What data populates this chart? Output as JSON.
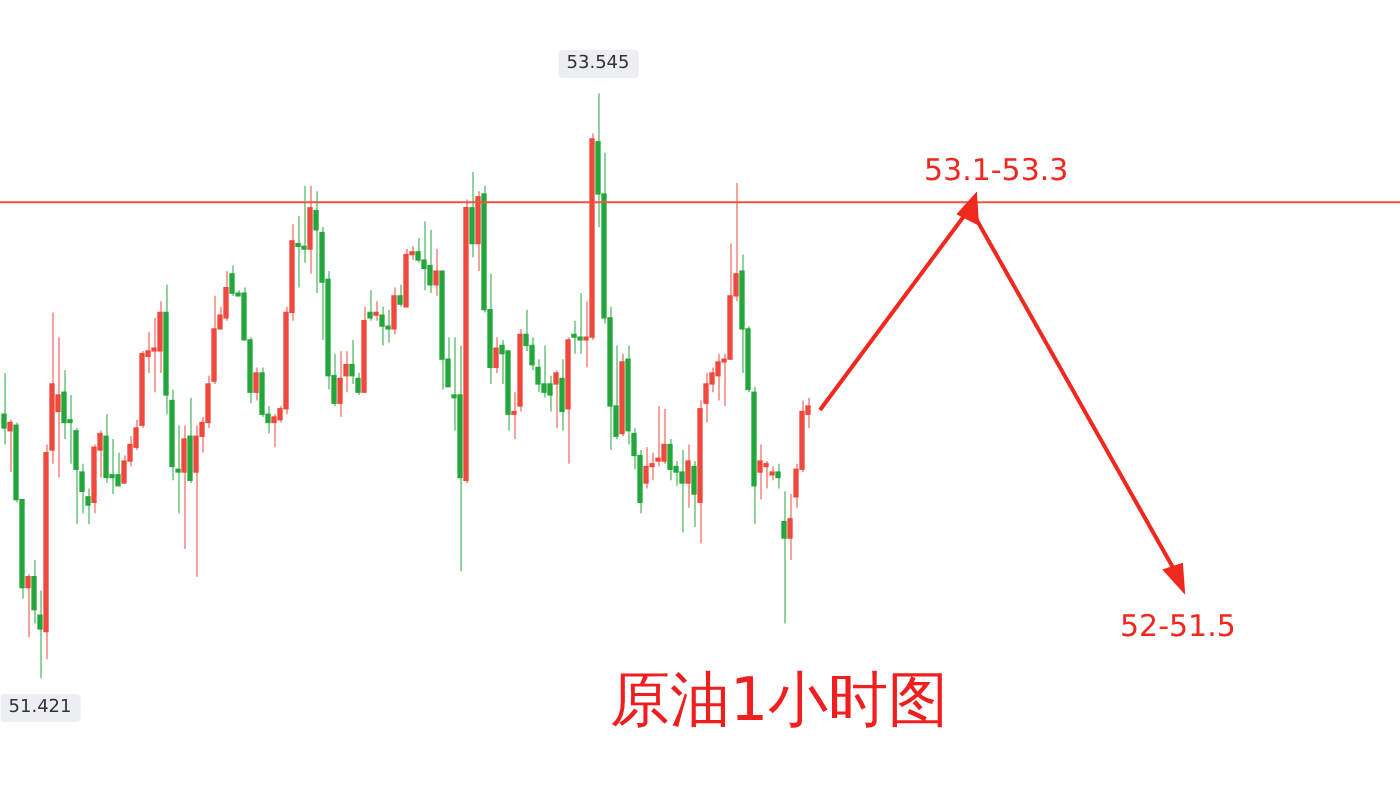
{
  "chart_data": {
    "type": "candlestick",
    "title": "原油1小时图",
    "categories": [
      null,
      null,
      null,
      null,
      null,
      null,
      null,
      null,
      null,
      null,
      null,
      null,
      null,
      null,
      null,
      null,
      null,
      null,
      null,
      null,
      null,
      null,
      null,
      null,
      null,
      null,
      null,
      null,
      null,
      null,
      null,
      null,
      null,
      null,
      null,
      null,
      null,
      null,
      null,
      null,
      null,
      null,
      null,
      null,
      null,
      null,
      null,
      null,
      null,
      null,
      null,
      null,
      null,
      null,
      null,
      null,
      null,
      null,
      null,
      null,
      null,
      null,
      null,
      null,
      null,
      null,
      null,
      null,
      null,
      null,
      null,
      null,
      null,
      null,
      null,
      null,
      null,
      null,
      null,
      null,
      null,
      null,
      null,
      null,
      null,
      null,
      null,
      null,
      null,
      null,
      null,
      null,
      null,
      null,
      null,
      null,
      null,
      null,
      null,
      null,
      null,
      null,
      null,
      null,
      null,
      null,
      null,
      null,
      null,
      null,
      null,
      null,
      null,
      null,
      null,
      null,
      null,
      null,
      null,
      null,
      null,
      null,
      null,
      null,
      null,
      null,
      null,
      null,
      null,
      null,
      null,
      null,
      null,
      null,
      null
    ],
    "ohlc": [
      [
        52.38,
        52.53,
        52.27,
        52.33
      ],
      [
        52.32,
        52.36,
        52.17,
        52.35
      ],
      [
        52.34,
        52.35,
        52.06,
        52.07
      ],
      [
        52.07,
        52.07,
        51.71,
        51.75
      ],
      [
        51.75,
        51.8,
        51.57,
        51.79
      ],
      [
        51.79,
        51.85,
        51.62,
        51.67
      ],
      [
        51.65,
        51.74,
        51.421,
        51.6
      ],
      [
        51.59,
        52.27,
        51.49,
        52.24
      ],
      [
        52.25,
        52.75,
        52.2,
        52.49
      ],
      [
        52.39,
        52.66,
        52.15,
        52.45
      ],
      [
        52.46,
        52.54,
        52.29,
        52.35
      ],
      [
        52.36,
        52.45,
        52.2,
        52.35
      ],
      [
        52.32,
        52.33,
        51.98,
        52.18
      ],
      [
        52.17,
        52.2,
        52.02,
        52.1
      ],
      [
        52.08,
        52.11,
        51.98,
        52.05
      ],
      [
        52.06,
        52.27,
        52.02,
        52.26
      ],
      [
        52.25,
        52.32,
        52.15,
        52.31
      ],
      [
        52.3,
        52.38,
        52.13,
        52.15
      ],
      [
        52.16,
        52.29,
        52.09,
        52.15
      ],
      [
        52.16,
        52.24,
        52.12,
        52.12
      ],
      [
        52.13,
        52.23,
        52.13,
        52.21
      ],
      [
        52.21,
        52.3,
        52.19,
        52.27
      ],
      [
        52.26,
        52.36,
        52.25,
        52.33
      ],
      [
        52.34,
        52.61,
        52.33,
        52.6
      ],
      [
        52.59,
        52.68,
        52.53,
        52.61
      ],
      [
        52.61,
        52.73,
        52.46,
        52.62
      ],
      [
        52.61,
        52.79,
        52.53,
        52.75
      ],
      [
        52.75,
        52.85,
        52.38,
        52.45
      ],
      [
        52.43,
        52.47,
        52.14,
        52.19
      ],
      [
        52.18,
        52.34,
        52.02,
        52.17
      ],
      [
        52.17,
        52.34,
        51.89,
        52.29
      ],
      [
        52.3,
        52.44,
        52.13,
        52.14
      ],
      [
        52.17,
        52.34,
        51.79,
        52.3
      ],
      [
        52.3,
        52.37,
        52.24,
        52.35
      ],
      [
        52.35,
        52.52,
        52.33,
        52.49
      ],
      [
        52.5,
        52.81,
        52.49,
        52.69
      ],
      [
        52.69,
        52.77,
        52.69,
        52.74
      ],
      [
        52.73,
        52.9,
        52.72,
        52.84
      ],
      [
        52.89,
        52.92,
        52.81,
        52.82
      ],
      [
        52.82,
        52.83,
        52.81,
        52.81
      ],
      [
        52.82,
        52.84,
        52.65,
        52.65
      ],
      [
        52.65,
        52.66,
        52.42,
        52.46
      ],
      [
        52.46,
        52.55,
        52.43,
        52.53
      ],
      [
        52.53,
        52.55,
        52.37,
        52.38
      ],
      [
        52.38,
        52.41,
        52.31,
        52.35
      ],
      [
        52.35,
        52.38,
        52.26,
        52.37
      ],
      [
        52.36,
        52.41,
        52.35,
        52.4
      ],
      [
        52.4,
        52.77,
        52.38,
        52.75
      ],
      [
        52.75,
        53.07,
        52.72,
        53.01
      ],
      [
        53,
        53.1,
        52.84,
        52.99
      ],
      [
        52.99,
        53.21,
        52.93,
        52.98
      ],
      [
        52.98,
        53.21,
        52.89,
        53.13
      ],
      [
        53.12,
        53.19,
        52.82,
        53.05
      ],
      [
        53.04,
        53.06,
        52.65,
        52.86
      ],
      [
        52.87,
        52.9,
        52.47,
        52.52
      ],
      [
        52.52,
        52.6,
        52.41,
        52.42
      ],
      [
        52.42,
        52.61,
        52.37,
        52.51
      ],
      [
        52.52,
        52.61,
        52.46,
        52.56
      ],
      [
        52.56,
        52.65,
        52.49,
        52.52
      ],
      [
        52.51,
        52.53,
        52.45,
        52.46
      ],
      [
        52.46,
        52.77,
        52.46,
        52.72
      ],
      [
        52.75,
        52.83,
        52.72,
        52.73
      ],
      [
        52.74,
        52.79,
        52.72,
        52.75
      ],
      [
        52.74,
        52.77,
        52.63,
        52.7
      ],
      [
        52.7,
        52.76,
        52.64,
        52.69
      ],
      [
        52.69,
        52.84,
        52.67,
        52.81
      ],
      [
        52.81,
        52.85,
        52.77,
        52.78
      ],
      [
        52.77,
        52.98,
        52.77,
        52.96
      ],
      [
        52.96,
        52.99,
        52.94,
        52.97
      ],
      [
        52.97,
        53.02,
        52.93,
        52.94
      ],
      [
        52.94,
        53.08,
        52.83,
        52.91
      ],
      [
        52.92,
        53.05,
        52.82,
        52.85
      ],
      [
        52.85,
        52.98,
        52.81,
        52.9
      ],
      [
        52.9,
        52.9,
        52.47,
        52.58
      ],
      [
        52.58,
        52.66,
        52.48,
        52.48
      ],
      [
        52.45,
        52.66,
        52.32,
        52.44
      ],
      [
        52.45,
        52.63,
        51.81,
        52.15
      ],
      [
        52.14,
        53.16,
        52.13,
        53.13
      ],
      [
        53.13,
        53.26,
        52.95,
        53
      ],
      [
        53,
        53.19,
        52.9,
        53.17
      ],
      [
        53.18,
        53.21,
        52.75,
        52.76
      ],
      [
        52.76,
        52.89,
        52.49,
        52.55
      ],
      [
        52.55,
        52.66,
        52.53,
        52.62
      ],
      [
        52.63,
        52.65,
        52.49,
        52.6
      ],
      [
        52.61,
        52.61,
        52.32,
        52.38
      ],
      [
        52.38,
        52.46,
        52.29,
        52.39
      ],
      [
        52.41,
        52.69,
        52.39,
        52.67
      ],
      [
        52.67,
        52.76,
        52.61,
        52.63
      ],
      [
        52.63,
        52.66,
        52.54,
        52.56
      ],
      [
        52.55,
        52.58,
        52.46,
        52.49
      ],
      [
        52.49,
        52.63,
        52.44,
        52.46
      ],
      [
        52.49,
        52.52,
        52.39,
        52.45
      ],
      [
        52.49,
        52.54,
        52.33,
        52.53
      ],
      [
        52.51,
        52.58,
        52.32,
        52.39
      ],
      [
        52.4,
        52.66,
        52.2,
        52.65
      ],
      [
        52.67,
        52.72,
        52.6,
        52.66
      ],
      [
        52.66,
        52.82,
        52.6,
        52.65
      ],
      [
        52.65,
        52.79,
        52.55,
        52.66
      ],
      [
        52.66,
        53.4,
        52.65,
        53.38
      ],
      [
        53.37,
        53.545,
        53.06,
        53.18
      ],
      [
        53.18,
        53.33,
        52.71,
        52.73
      ],
      [
        52.73,
        52.77,
        52.25,
        52.41
      ],
      [
        52.41,
        52.63,
        52.29,
        52.3
      ],
      [
        52.31,
        52.6,
        52.3,
        52.57
      ],
      [
        52.58,
        52.63,
        52.27,
        52.32
      ],
      [
        52.31,
        52.33,
        52.18,
        52.23
      ],
      [
        52.23,
        52.25,
        52.02,
        52.06
      ],
      [
        52.13,
        52.26,
        52.11,
        52.19
      ],
      [
        52.19,
        52.24,
        52.14,
        52.2
      ],
      [
        52.21,
        52.41,
        52.19,
        52.22
      ],
      [
        52.21,
        52.4,
        52.2,
        52.27
      ],
      [
        52.27,
        52.29,
        52.14,
        52.18
      ],
      [
        52.19,
        52.21,
        52.12,
        52.17
      ],
      [
        52.17,
        52.25,
        51.95,
        52.13
      ],
      [
        52.13,
        52.27,
        52.04,
        52.21
      ],
      [
        52.19,
        52.21,
        51.97,
        52.09
      ],
      [
        52.06,
        52.43,
        51.91,
        52.4
      ],
      [
        52.42,
        52.53,
        52.35,
        52.49
      ],
      [
        52.49,
        52.55,
        52.46,
        52.53
      ],
      [
        52.52,
        52.6,
        52.43,
        52.57
      ],
      [
        52.57,
        52.6,
        52.41,
        52.58
      ],
      [
        52.58,
        53,
        52.58,
        52.81
      ],
      [
        52.81,
        53.22,
        52.79,
        52.89
      ],
      [
        52.9,
        52.96,
        52.53,
        52.69
      ],
      [
        52.69,
        52.7,
        52.46,
        52.47
      ],
      [
        52.46,
        52.48,
        51.98,
        52.12
      ],
      [
        52.17,
        52.27,
        52.07,
        52.21
      ],
      [
        52.19,
        52.21,
        52.11,
        52.2
      ],
      [
        52.16,
        52.19,
        52.14,
        52.17
      ],
      [
        52.17,
        52.2,
        52.11,
        52.15
      ],
      [
        51.99,
        52.1,
        51.62,
        51.93
      ],
      [
        51.93,
        52.09,
        51.85,
        52
      ],
      [
        52.08,
        52.2,
        52.04,
        52.18
      ],
      [
        52.18,
        52.43,
        52.17,
        52.39
      ],
      [
        52.38,
        52.44,
        52.33,
        52.41
      ]
    ],
    "ref_lines": [
      {
        "axis": "y",
        "value": 53.15,
        "color": "#f0553f"
      }
    ],
    "annotations": [
      {
        "text": "53.545",
        "y": 53.545
      },
      {
        "text": "51.421",
        "y": 51.421
      },
      "53.1-53.3",
      "52-51.5"
    ]
  }
}
